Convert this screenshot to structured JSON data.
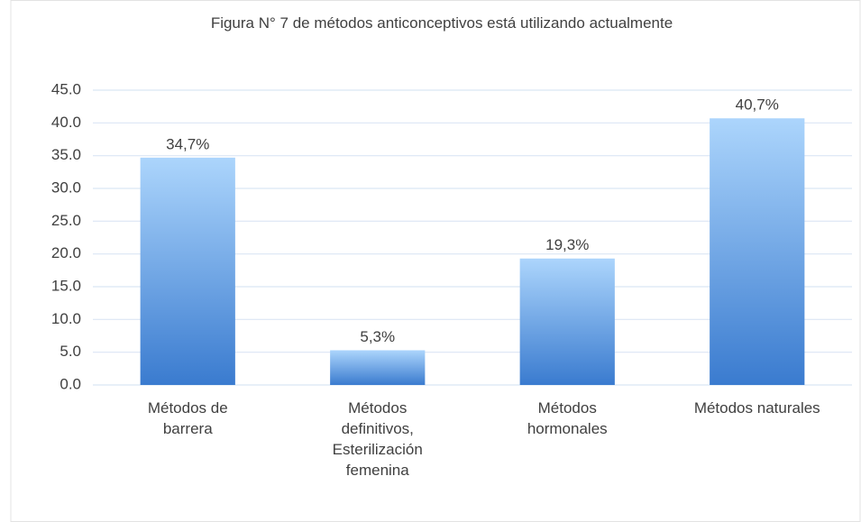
{
  "chart_data": {
    "type": "bar",
    "title": "Figura N° 7 de métodos anticonceptivos está utilizando actualmente",
    "categories": [
      "Métodos de barrera",
      "Métodos definitivos, Esterilización femenina",
      "Métodos hormonales",
      "Métodos naturales"
    ],
    "values": [
      34.7,
      5.3,
      19.3,
      40.7
    ],
    "value_labels": [
      "34,7%",
      "5,3%",
      "19,3%",
      "40,7%"
    ],
    "gradient": [
      "#acd5fc",
      "#3a7bcf"
    ],
    "ylim": [
      0,
      45
    ],
    "yticks": [
      {
        "value": 0,
        "label": "0.0"
      },
      {
        "value": 5,
        "label": "5.0"
      },
      {
        "value": 10,
        "label": "10.0"
      },
      {
        "value": 15,
        "label": "15.0"
      },
      {
        "value": 20,
        "label": "20.0"
      },
      {
        "value": 25,
        "label": "25.0"
      },
      {
        "value": 30,
        "label": "30.0"
      },
      {
        "value": 35,
        "label": "35.0"
      },
      {
        "value": 40,
        "label": "40.0"
      },
      {
        "value": 45,
        "label": "45.0"
      }
    ],
    "grid": true
  }
}
